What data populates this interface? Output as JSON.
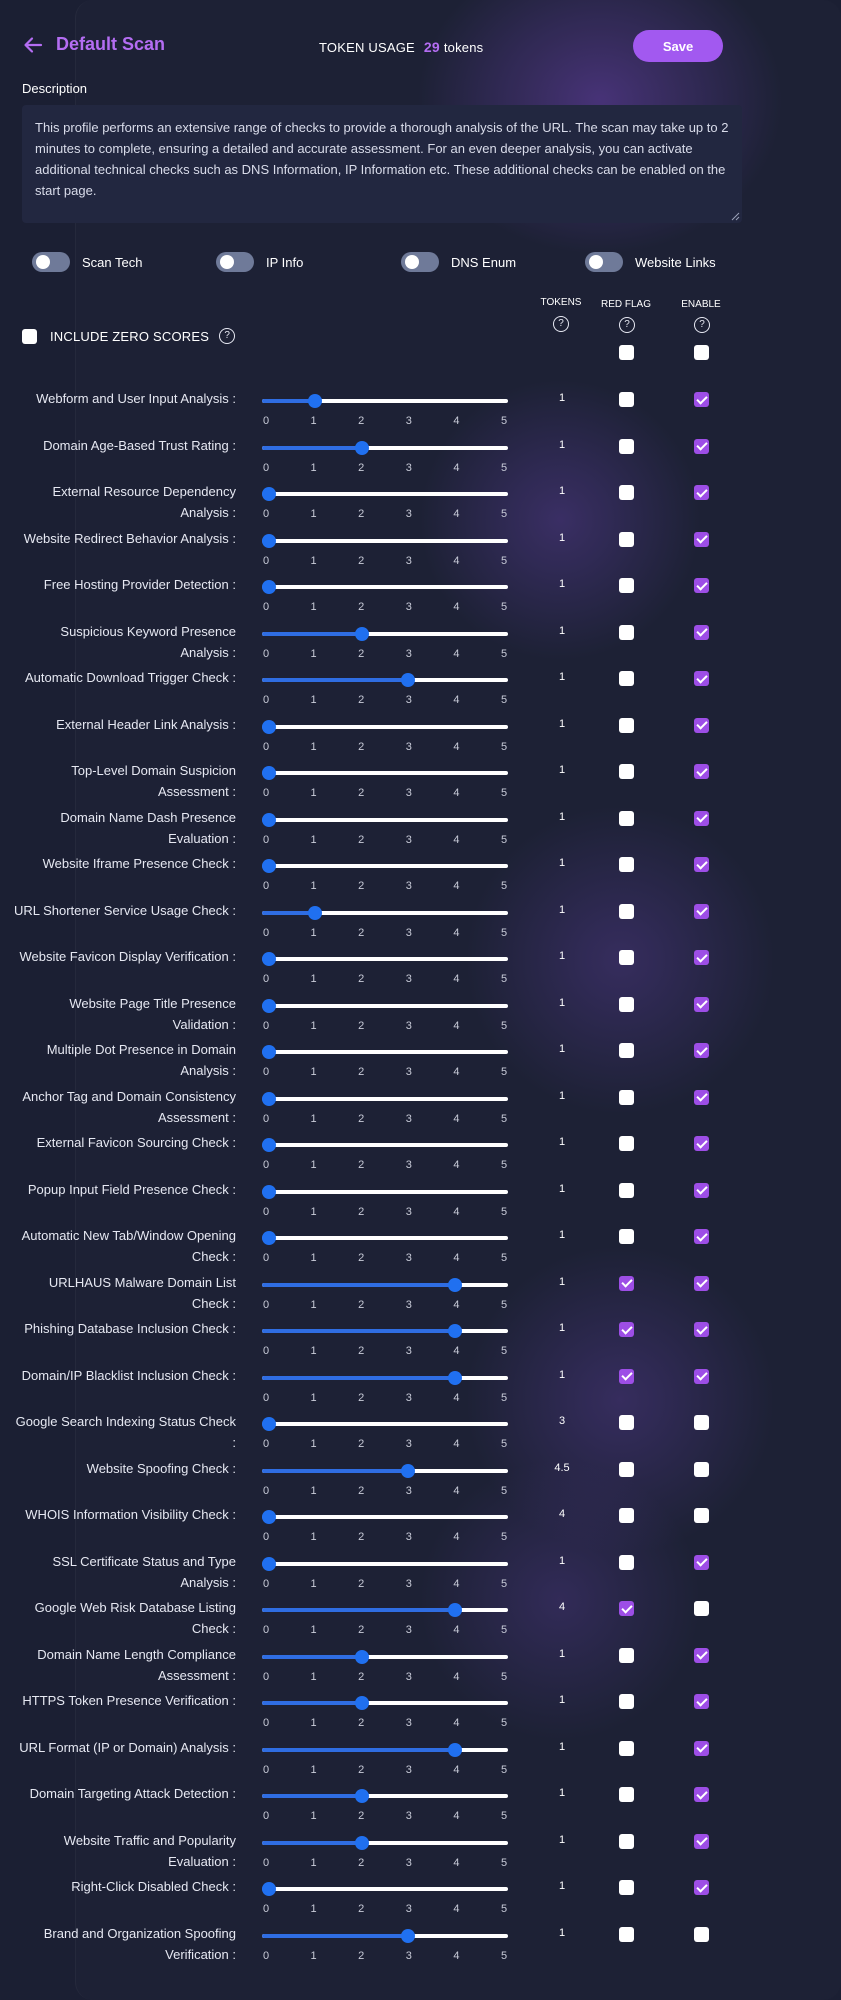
{
  "header": {
    "title": "Default Scan",
    "token_usage_label": "TOKEN USAGE",
    "token_count": "29",
    "token_unit": "tokens",
    "save_label": "Save"
  },
  "description": {
    "label": "Description",
    "text": "This profile performs an extensive range of checks to provide a thorough analysis of the URL. The scan may take up to 2 minutes to complete, ensuring a detailed and accurate assessment. For an even deeper analysis, you can activate additional technical checks such as DNS Information, IP Information etc. These additional checks can be enabled on the start page."
  },
  "toggles": [
    {
      "label": "Scan Tech",
      "on": false
    },
    {
      "label": "IP Info",
      "on": false
    },
    {
      "label": "DNS Enum",
      "on": false
    },
    {
      "label": "Website Links",
      "on": false
    }
  ],
  "columns": {
    "tokens": "TOKENS",
    "red_flag": "RED FLAG",
    "enable": "ENABLE",
    "help_glyph": "?"
  },
  "include_zero": {
    "label": "INCLUDE ZERO SCORES",
    "checked": false
  },
  "header_checks": {
    "red_flag": false,
    "enable": false
  },
  "slider_ticks": [
    "0",
    "1",
    "2",
    "3",
    "4",
    "5"
  ],
  "checks": [
    {
      "label": "Webform and User Input Analysis :",
      "value": 1,
      "tokens": "1",
      "red_flag": false,
      "enabled": true
    },
    {
      "label": "Domain Age-Based Trust Rating :",
      "value": 2,
      "tokens": "1",
      "red_flag": false,
      "enabled": true
    },
    {
      "label": "External Resource Dependency Analysis :",
      "value": 0,
      "tokens": "1",
      "red_flag": false,
      "enabled": true
    },
    {
      "label": "Website Redirect Behavior Analysis :",
      "value": 0,
      "tokens": "1",
      "red_flag": false,
      "enabled": true
    },
    {
      "label": "Free Hosting Provider Detection :",
      "value": 0,
      "tokens": "1",
      "red_flag": false,
      "enabled": true
    },
    {
      "label": "Suspicious Keyword Presence Analysis :",
      "value": 2,
      "tokens": "1",
      "red_flag": false,
      "enabled": true
    },
    {
      "label": "Automatic Download Trigger Check :",
      "value": 3,
      "tokens": "1",
      "red_flag": false,
      "enabled": true
    },
    {
      "label": "External Header Link Analysis :",
      "value": 0,
      "tokens": "1",
      "red_flag": false,
      "enabled": true
    },
    {
      "label": "Top-Level Domain Suspicion Assessment :",
      "value": 0,
      "tokens": "1",
      "red_flag": false,
      "enabled": true
    },
    {
      "label": "Domain Name Dash Presence Evaluation :",
      "value": 0,
      "tokens": "1",
      "red_flag": false,
      "enabled": true
    },
    {
      "label": "Website Iframe Presence Check :",
      "value": 0,
      "tokens": "1",
      "red_flag": false,
      "enabled": true
    },
    {
      "label": "URL Shortener Service Usage Check :",
      "value": 1,
      "tokens": "1",
      "red_flag": false,
      "enabled": true
    },
    {
      "label": "Website Favicon Display Verification :",
      "value": 0,
      "tokens": "1",
      "red_flag": false,
      "enabled": true
    },
    {
      "label": "Website Page Title Presence Validation :",
      "value": 0,
      "tokens": "1",
      "red_flag": false,
      "enabled": true
    },
    {
      "label": "Multiple Dot Presence in Domain Analysis :",
      "value": 0,
      "tokens": "1",
      "red_flag": false,
      "enabled": true
    },
    {
      "label": "Anchor Tag and Domain Consistency Assessment :",
      "value": 0,
      "tokens": "1",
      "red_flag": false,
      "enabled": true
    },
    {
      "label": "External Favicon Sourcing Check :",
      "value": 0,
      "tokens": "1",
      "red_flag": false,
      "enabled": true
    },
    {
      "label": "Popup Input Field Presence Check :",
      "value": 0,
      "tokens": "1",
      "red_flag": false,
      "enabled": true
    },
    {
      "label": "Automatic New Tab/Window Opening Check :",
      "value": 0,
      "tokens": "1",
      "red_flag": false,
      "enabled": true
    },
    {
      "label": "URLHAUS Malware Domain List Check :",
      "value": 4,
      "tokens": "1",
      "red_flag": true,
      "enabled": true
    },
    {
      "label": "Phishing Database Inclusion Check :",
      "value": 4,
      "tokens": "1",
      "red_flag": true,
      "enabled": true
    },
    {
      "label": "Domain/IP Blacklist Inclusion Check :",
      "value": 4,
      "tokens": "1",
      "red_flag": true,
      "enabled": true
    },
    {
      "label": "Google Search Indexing Status Check :",
      "value": 0,
      "tokens": "3",
      "red_flag": false,
      "enabled": false
    },
    {
      "label": "Website Spoofing Check :",
      "value": 3,
      "tokens": "4.5",
      "red_flag": false,
      "enabled": false
    },
    {
      "label": "WHOIS Information Visibility Check :",
      "value": 0,
      "tokens": "4",
      "red_flag": false,
      "enabled": false
    },
    {
      "label": "SSL Certificate Status and Type Analysis :",
      "value": 0,
      "tokens": "1",
      "red_flag": false,
      "enabled": true
    },
    {
      "label": "Google Web Risk Database Listing Check :",
      "value": 4,
      "tokens": "4",
      "red_flag": true,
      "enabled": false
    },
    {
      "label": "Domain Name Length Compliance Assessment :",
      "value": 2,
      "tokens": "1",
      "red_flag": false,
      "enabled": true
    },
    {
      "label": "HTTPS Token Presence Verification :",
      "value": 2,
      "tokens": "1",
      "red_flag": false,
      "enabled": true
    },
    {
      "label": "URL Format (IP or Domain) Analysis :",
      "value": 4,
      "tokens": "1",
      "red_flag": false,
      "enabled": true
    },
    {
      "label": "Domain Targeting Attack Detection :",
      "value": 2,
      "tokens": "1",
      "red_flag": false,
      "enabled": true
    },
    {
      "label": "Website Traffic and Popularity Evaluation :",
      "value": 2,
      "tokens": "1",
      "red_flag": false,
      "enabled": true
    },
    {
      "label": "Right-Click Disabled Check :",
      "value": 0,
      "tokens": "1",
      "red_flag": false,
      "enabled": true
    },
    {
      "label": "Brand and Organization Spoofing Verification :",
      "value": 3,
      "tokens": "1",
      "red_flag": false,
      "enabled": false
    }
  ],
  "colors": {
    "accent": "#a259f0",
    "title": "#b46df2",
    "slider_fill": "#2f6de2",
    "slider_thumb": "#2070f0",
    "background": "#1b1f33"
  }
}
